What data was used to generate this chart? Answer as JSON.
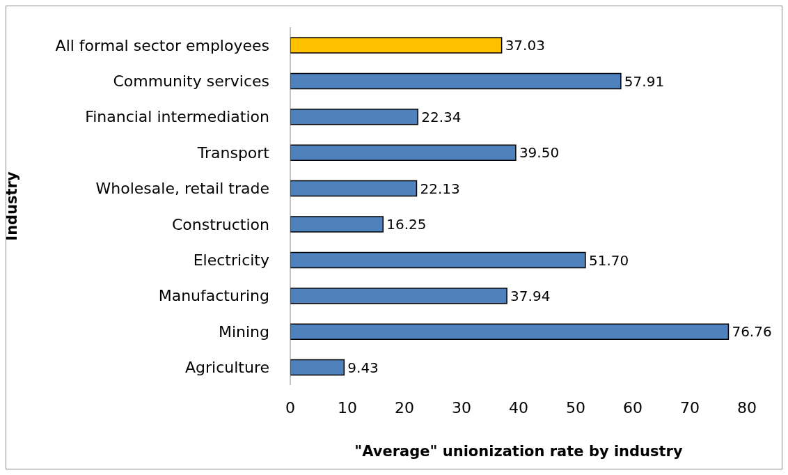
{
  "chart_data": {
    "type": "bar",
    "orientation": "horizontal",
    "categories": [
      "All formal sector employees",
      "Community services",
      "Financial intermediation",
      "Transport",
      "Wholesale, retail trade",
      "Construction",
      "Electricity",
      "Manufacturing",
      "Mining",
      "Agriculture"
    ],
    "values": [
      37.03,
      57.91,
      22.34,
      39.5,
      22.13,
      16.25,
      51.7,
      37.94,
      76.76,
      9.43
    ],
    "value_labels": [
      "37.03",
      "57.91",
      "22.34",
      "39.50",
      "22.13",
      "16.25",
      "51.70",
      "37.94",
      "76.76",
      "9.43"
    ],
    "colors": [
      "#ffc000",
      "#4f81bd",
      "#4f81bd",
      "#4f81bd",
      "#4f81bd",
      "#4f81bd",
      "#4f81bd",
      "#4f81bd",
      "#4f81bd",
      "#4f81bd"
    ],
    "xlim": [
      0,
      80
    ],
    "xticks": [
      0,
      10,
      20,
      30,
      40,
      50,
      60,
      70,
      80
    ],
    "xlabel": "\"Average\" unionization rate by industry",
    "ylabel": "Industry",
    "grid": false,
    "legend": false
  }
}
